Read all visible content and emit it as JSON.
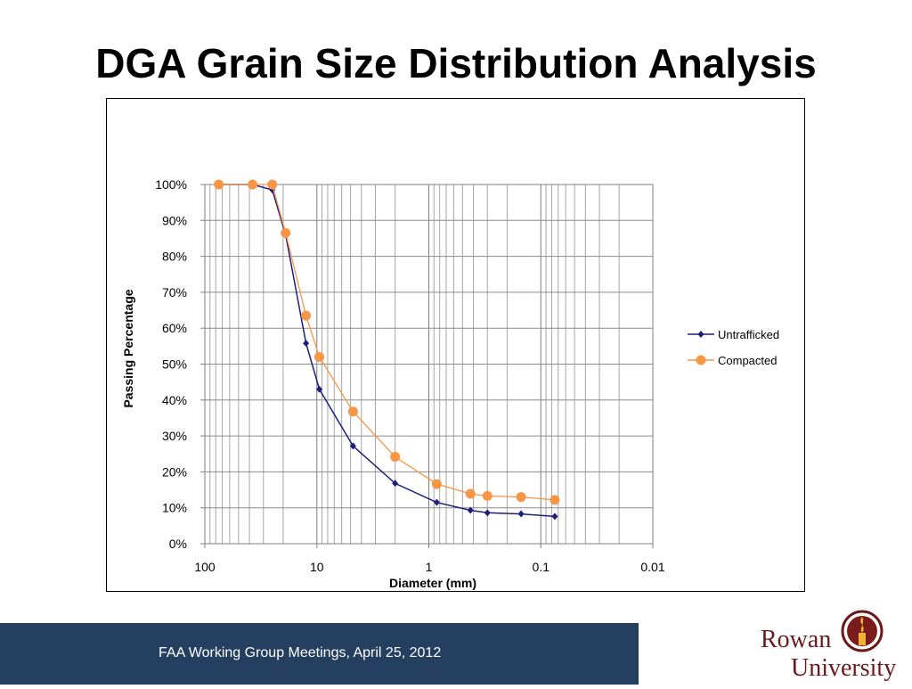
{
  "slide": {
    "title": "DGA Grain Size Distribution Analysis",
    "footer": "FAA Working Group Meetings, April 25, 2012",
    "logo_line1": "Rowan",
    "logo_line2": "University"
  },
  "chart_data": {
    "type": "scatter",
    "title": "",
    "xlabel": "Diameter (mm)",
    "ylabel": "Passing Percentage",
    "x_scale": "log",
    "x_reversed": true,
    "xlim": [
      100,
      0.01
    ],
    "ylim": [
      0,
      1
    ],
    "x_ticks": [
      "100",
      "10",
      "1",
      "0.1",
      "0.01"
    ],
    "y_ticks": [
      "0%",
      "10%",
      "20%",
      "30%",
      "40%",
      "50%",
      "60%",
      "70%",
      "80%",
      "90%",
      "100%"
    ],
    "grid": true,
    "legend_position": "right",
    "series": [
      {
        "name": "Untrafficked",
        "color": "#1f1f7a",
        "marker": "diamond",
        "points": [
          {
            "x": 75,
            "y": 1.0
          },
          {
            "x": 37.5,
            "y": 1.0
          },
          {
            "x": 25,
            "y": 0.985
          },
          {
            "x": 19,
            "y": 0.86
          },
          {
            "x": 12.5,
            "y": 0.558
          },
          {
            "x": 9.5,
            "y": 0.43
          },
          {
            "x": 4.75,
            "y": 0.272
          },
          {
            "x": 2,
            "y": 0.168
          },
          {
            "x": 0.85,
            "y": 0.115
          },
          {
            "x": 0.425,
            "y": 0.093
          },
          {
            "x": 0.3,
            "y": 0.086
          },
          {
            "x": 0.15,
            "y": 0.083
          },
          {
            "x": 0.075,
            "y": 0.076
          }
        ]
      },
      {
        "name": "Compacted",
        "color": "#f79646",
        "marker": "circle",
        "points": [
          {
            "x": 75,
            "y": 1.0
          },
          {
            "x": 37.5,
            "y": 1.0
          },
          {
            "x": 25,
            "y": 1.0
          },
          {
            "x": 19,
            "y": 0.865
          },
          {
            "x": 12.5,
            "y": 0.635
          },
          {
            "x": 9.5,
            "y": 0.52
          },
          {
            "x": 4.75,
            "y": 0.368
          },
          {
            "x": 2,
            "y": 0.242
          },
          {
            "x": 0.85,
            "y": 0.166
          },
          {
            "x": 0.425,
            "y": 0.139
          },
          {
            "x": 0.3,
            "y": 0.133
          },
          {
            "x": 0.15,
            "y": 0.13
          },
          {
            "x": 0.075,
            "y": 0.122
          }
        ]
      }
    ]
  }
}
